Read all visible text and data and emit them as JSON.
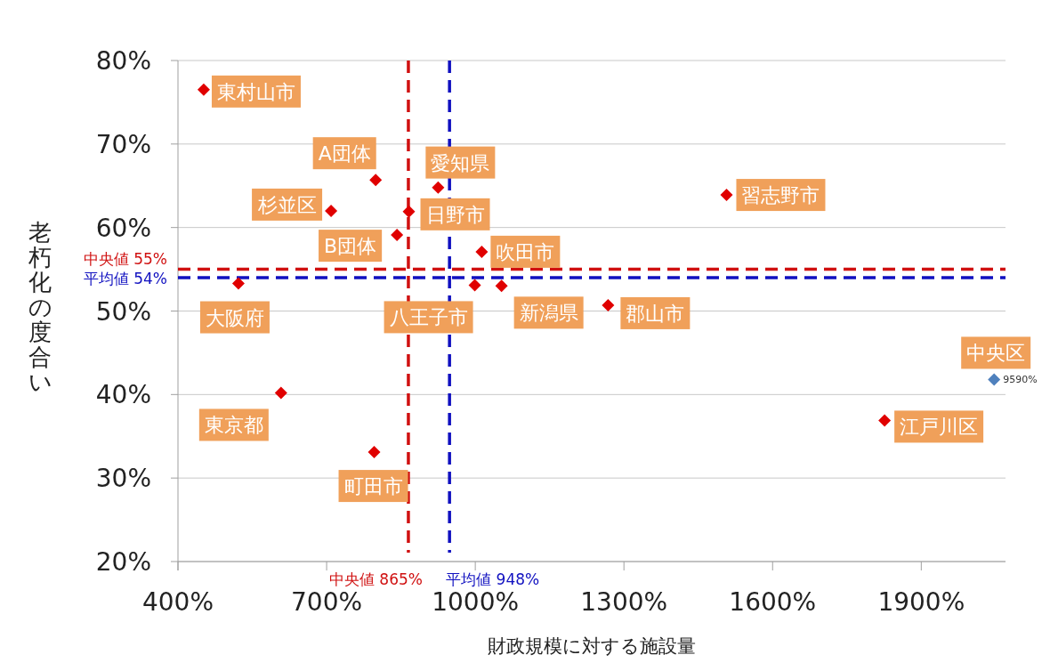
{
  "chart_data": {
    "type": "scatter",
    "xlabel": "財政規模に対する施設量",
    "ylabel": "老朽化の度合い",
    "xlim": [
      400,
      2070
    ],
    "ylim": [
      20,
      80
    ],
    "xticks": [
      {
        "value": 400,
        "label": "400%"
      },
      {
        "value": 700,
        "label": "700%"
      },
      {
        "value": 1000,
        "label": "1000%"
      },
      {
        "value": 1300,
        "label": "1300%"
      },
      {
        "value": 1600,
        "label": "1600%"
      },
      {
        "value": 1900,
        "label": "1900%"
      }
    ],
    "yticks": [
      {
        "value": 20,
        "label": "20%"
      },
      {
        "value": 30,
        "label": "30%"
      },
      {
        "value": 40,
        "label": "40%"
      },
      {
        "value": 50,
        "label": "50%"
      },
      {
        "value": 60,
        "label": "60%"
      },
      {
        "value": 70,
        "label": "70%"
      },
      {
        "value": 80,
        "label": "80%"
      }
    ],
    "grid": "y",
    "marker": "diamond",
    "series": [
      {
        "color": "#e00000",
        "x": [
          452,
          799,
          709,
          925,
          866,
          842,
          1013,
          999,
          1053,
          522,
          1268,
          1507,
          608,
          796,
          1826
        ],
        "values": [
          76.5,
          65.7,
          62.0,
          64.8,
          61.9,
          59.1,
          57.1,
          53.1,
          53.0,
          53.3,
          50.7,
          63.9,
          40.2,
          33.1,
          36.9
        ]
      },
      {
        "color": "#4f81bd",
        "x": [
          2047
        ],
        "values": [
          41.8
        ]
      }
    ],
    "ref_lines": [
      {
        "axis": "x",
        "value": 865,
        "label": "中央値 865%",
        "color": "#d01010",
        "line_style": "dashed"
      },
      {
        "axis": "x",
        "value": 948,
        "label": "平均値 948%",
        "color": "#1010c0",
        "line_style": "dashed"
      },
      {
        "axis": "y",
        "value": 55,
        "label": "中央値 55%",
        "color": "#d01010",
        "line_style": "dashed"
      },
      {
        "axis": "y",
        "value": 54,
        "label": "平均値 54%",
        "color": "#1010c0",
        "line_style": "dashed"
      }
    ],
    "annotations": [
      {
        "text": "東村山市",
        "x": 452,
        "y": 76.5
      },
      {
        "text": "A団体",
        "x": 799,
        "y": 65.7
      },
      {
        "text": "杉並区",
        "x": 709,
        "y": 62.0
      },
      {
        "text": "愛知県",
        "x": 925,
        "y": 64.8
      },
      {
        "text": "日野市",
        "x": 866,
        "y": 61.9
      },
      {
        "text": "B団体",
        "x": 842,
        "y": 59.1
      },
      {
        "text": "吹田市",
        "x": 1013,
        "y": 57.1
      },
      {
        "text": "八王子市",
        "x": 999,
        "y": 53.1
      },
      {
        "text": "新潟県",
        "x": 1053,
        "y": 53.0
      },
      {
        "text": "大阪府",
        "x": 522,
        "y": 53.3
      },
      {
        "text": "郡山市",
        "x": 1268,
        "y": 50.7
      },
      {
        "text": "習志野市",
        "x": 1507,
        "y": 63.9
      },
      {
        "text": "東京都",
        "x": 608,
        "y": 40.2
      },
      {
        "text": "町田市",
        "x": 796,
        "y": 33.1
      },
      {
        "text": "江戸川区",
        "x": 1826,
        "y": 36.9
      },
      {
        "text": "中央区",
        "x": 2047,
        "y": 41.8
      },
      {
        "text": "9590%",
        "x": 2047,
        "y": 41.8
      }
    ]
  }
}
